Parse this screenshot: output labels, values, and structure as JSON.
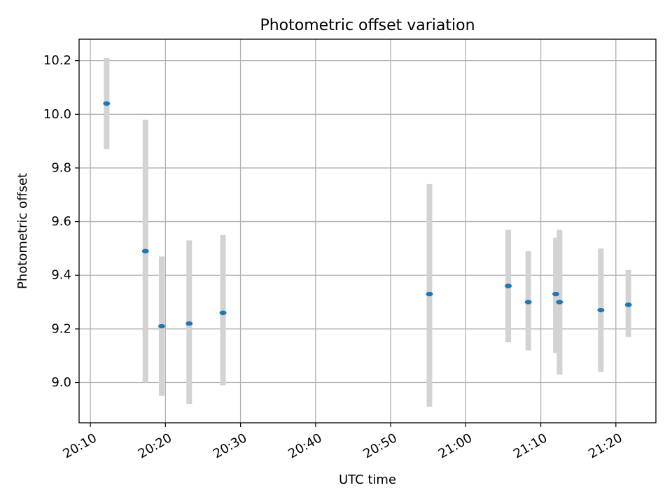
{
  "chart_data": {
    "type": "scatter",
    "title": "Photometric offset variation",
    "xlabel": "UTC time",
    "ylabel": "Photometric offset",
    "xlim": [
      "20:08:30",
      "21:25:20"
    ],
    "ylim": [
      8.85,
      10.28
    ],
    "grid": true,
    "x_ticks": [
      "20:10",
      "20:20",
      "20:30",
      "20:40",
      "20:50",
      "21:00",
      "21:10",
      "21:20"
    ],
    "y_ticks": [
      "9.0",
      "9.2",
      "9.4",
      "9.6",
      "9.8",
      "10.0",
      "10.2"
    ],
    "series": [
      {
        "points": [
          {
            "t": "20:12:10",
            "y": 10.04,
            "err_low": 9.87,
            "err_high": 10.21
          },
          {
            "t": "20:17:20",
            "y": 9.49,
            "err_low": 9.0,
            "err_high": 9.98
          },
          {
            "t": "20:19:30",
            "y": 9.21,
            "err_low": 8.95,
            "err_high": 9.47
          },
          {
            "t": "20:23:10",
            "y": 9.22,
            "err_low": 8.92,
            "err_high": 9.53
          },
          {
            "t": "20:27:40",
            "y": 9.26,
            "err_low": 8.99,
            "err_high": 9.55
          },
          {
            "t": "20:55:10",
            "y": 9.33,
            "err_low": 8.91,
            "err_high": 9.74
          },
          {
            "t": "21:05:40",
            "y": 9.36,
            "err_low": 9.15,
            "err_high": 9.57
          },
          {
            "t": "21:08:20",
            "y": 9.3,
            "err_low": 9.12,
            "err_high": 9.49
          },
          {
            "t": "21:12:00",
            "y": 9.33,
            "err_low": 9.11,
            "err_high": 9.54
          },
          {
            "t": "21:12:30",
            "y": 9.3,
            "err_low": 9.03,
            "err_high": 9.57
          },
          {
            "t": "21:18:00",
            "y": 9.27,
            "err_low": 9.04,
            "err_high": 9.5
          },
          {
            "t": "21:21:40",
            "y": 9.29,
            "err_low": 9.17,
            "err_high": 9.42
          }
        ]
      }
    ],
    "colors": {
      "marker": "#1f77b4",
      "error_bar": "#d3d3d3",
      "grid": "#b0b0b0"
    }
  }
}
